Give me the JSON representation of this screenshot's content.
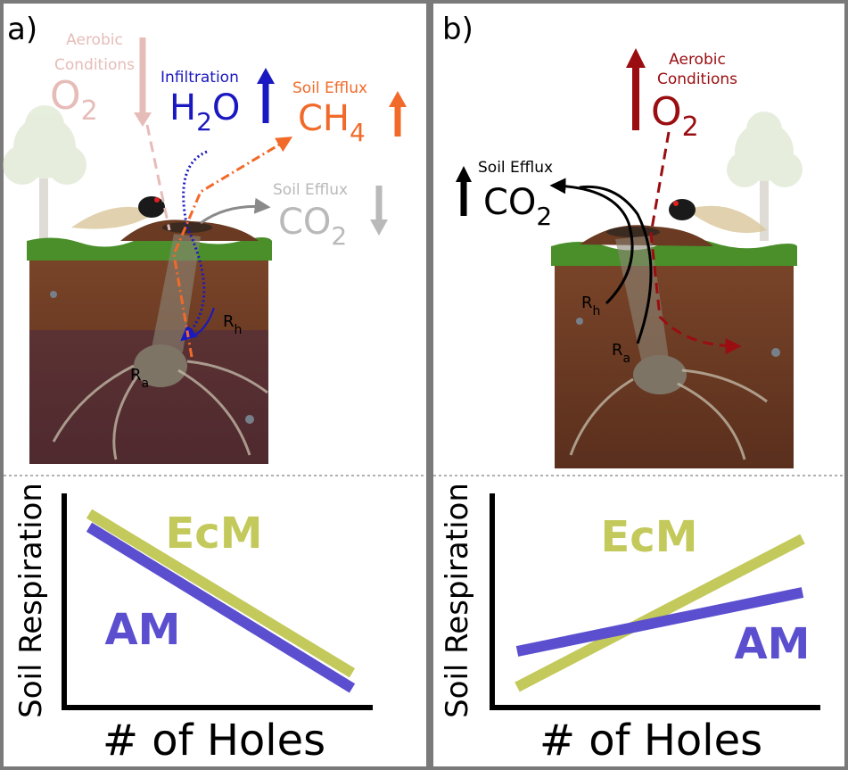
{
  "colors": {
    "frame": "#7a7a7a",
    "o2_pale": "#e6bcb8",
    "o2_dark": "#9a0d10",
    "h2o": "#1a18c0",
    "ch4": "#f26a2a",
    "co2_pale": "#b9b9b9",
    "co2_dark": "#000000",
    "ecm": "#c3c95a",
    "am": "#5b4fcf",
    "soil": "#6b3b25",
    "grass": "#4a8f2a"
  },
  "panel_a": {
    "label": "a)",
    "o2_caption": "Aerobic Conditions",
    "o2_caption_line1": "Aerobic",
    "o2_caption_line2": "Conditions",
    "o2_formula": "O",
    "o2_sub": "2",
    "h2o_caption": "Infiltration",
    "h2o_formula_h": "H",
    "h2o_sub": "2",
    "h2o_formula_o": "O",
    "ch4_caption": "Soil Efflux",
    "ch4_formula": "CH",
    "ch4_sub": "4",
    "co2_caption": "Soil Efflux",
    "co2_formula": "CO",
    "co2_sub": "2",
    "rh_label": "R",
    "rh_sub": "h",
    "ra_label": "R",
    "ra_sub": "a",
    "arrows": {
      "o2": "down",
      "h2o": "up",
      "ch4": "up",
      "co2": "down"
    }
  },
  "panel_b": {
    "label": "b)",
    "o2_caption_line1": "Aerobic",
    "o2_caption_line2": "Conditions",
    "o2_formula": "O",
    "o2_sub": "2",
    "co2_caption": "Soil Efflux",
    "co2_formula": "CO",
    "co2_sub": "2",
    "rh_label": "R",
    "rh_sub": "h",
    "ra_label": "R",
    "ra_sub": "a",
    "arrows": {
      "o2": "up",
      "co2": "up"
    }
  },
  "chart_data": [
    {
      "type": "line",
      "panel": "a",
      "xlabel": "# of Holes",
      "ylabel": "Soil Respiration",
      "series": [
        {
          "name": "EcM",
          "trend": "decreasing",
          "x": [
            0,
            1
          ],
          "y": [
            0.95,
            0.12
          ]
        },
        {
          "name": "AM",
          "trend": "decreasing",
          "x": [
            0,
            1
          ],
          "y": [
            0.88,
            0.04
          ]
        }
      ]
    },
    {
      "type": "line",
      "panel": "b",
      "xlabel": "# of Holes",
      "ylabel": "Soil Respiration",
      "series": [
        {
          "name": "EcM",
          "trend": "increasing",
          "x": [
            0,
            1
          ],
          "y": [
            0.05,
            0.88
          ]
        },
        {
          "name": "AM",
          "trend": "increasing",
          "x": [
            0,
            1
          ],
          "y": [
            0.25,
            0.58
          ]
        }
      ]
    }
  ]
}
